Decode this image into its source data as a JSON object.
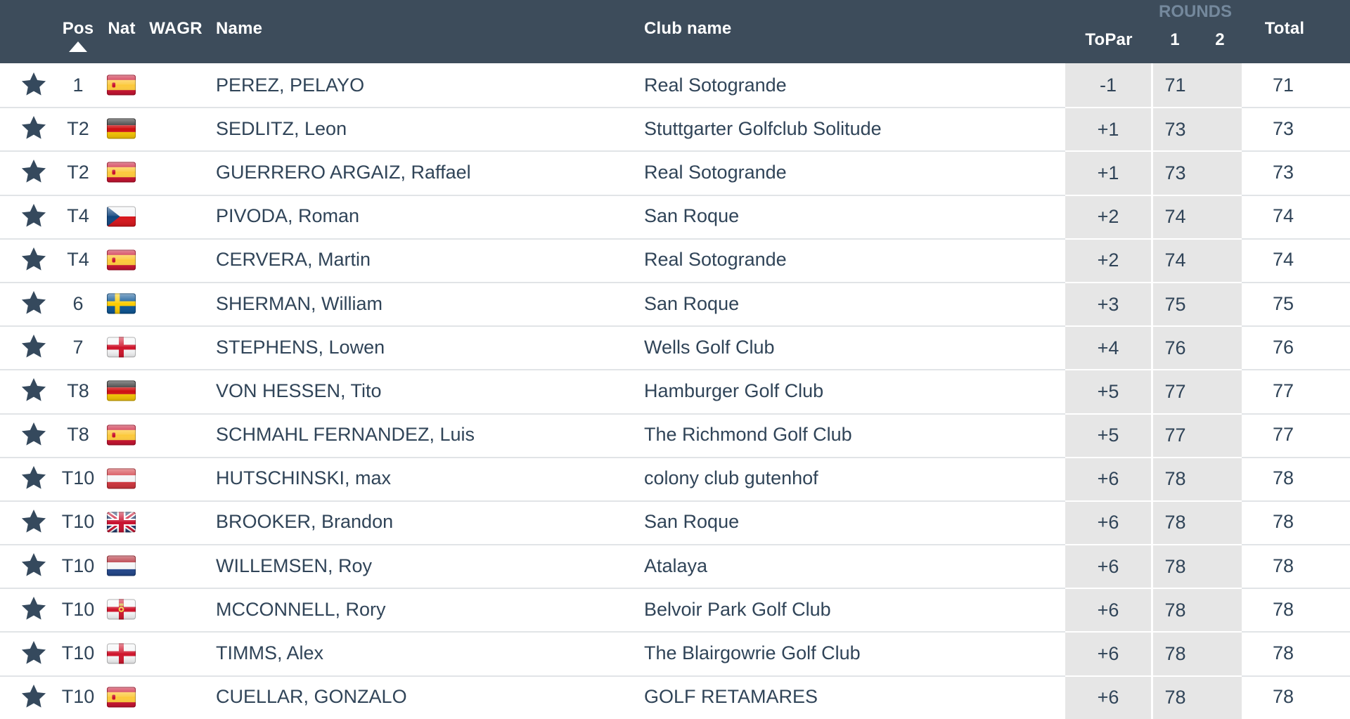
{
  "header": {
    "pos": "Pos",
    "nat": "Nat",
    "wagr": "WAGR",
    "name": "Name",
    "club": "Club name",
    "topar": "ToPar",
    "rounds_group": "ROUNDS",
    "round1": "1",
    "round2": "2",
    "total": "Total",
    "sort_icon": "up-triangle",
    "sorted_by": "Pos ascending"
  },
  "colors": {
    "header_bg": "#3d4c5b",
    "header_text": "#ffffff",
    "rounds_group_text": "#74889c",
    "row_text": "#304458",
    "score_cell_bg": "#e6e6e6",
    "row_divider": "#e1e4e7",
    "star": "#35495d"
  },
  "rows": [
    {
      "pos": "1",
      "nat": "ESP",
      "wagr": "",
      "name": "PEREZ, PELAYO",
      "club": "Real Sotogrande",
      "to_par": "-1",
      "r1": "71",
      "r2": "",
      "total": "71",
      "starred": true
    },
    {
      "pos": "T2",
      "nat": "GER",
      "wagr": "",
      "name": "SEDLITZ, Leon",
      "club": "Stuttgarter Golfclub Solitude",
      "to_par": "+1",
      "r1": "73",
      "r2": "",
      "total": "73",
      "starred": true
    },
    {
      "pos": "T2",
      "nat": "ESP",
      "wagr": "",
      "name": "GUERRERO ARGAIZ, Raffael",
      "club": "Real Sotogrande",
      "to_par": "+1",
      "r1": "73",
      "r2": "",
      "total": "73",
      "starred": true
    },
    {
      "pos": "T4",
      "nat": "CZE",
      "wagr": "",
      "name": "PIVODA, Roman",
      "club": "San Roque",
      "to_par": "+2",
      "r1": "74",
      "r2": "",
      "total": "74",
      "starred": true
    },
    {
      "pos": "T4",
      "nat": "ESP",
      "wagr": "",
      "name": "CERVERA, Martin",
      "club": "Real Sotogrande",
      "to_par": "+2",
      "r1": "74",
      "r2": "",
      "total": "74",
      "starred": true
    },
    {
      "pos": "6",
      "nat": "SWE",
      "wagr": "",
      "name": "SHERMAN, William",
      "club": "San Roque",
      "to_par": "+3",
      "r1": "75",
      "r2": "",
      "total": "75",
      "starred": true
    },
    {
      "pos": "7",
      "nat": "ENG",
      "wagr": "",
      "name": "STEPHENS, Lowen",
      "club": "Wells Golf Club",
      "to_par": "+4",
      "r1": "76",
      "r2": "",
      "total": "76",
      "starred": true
    },
    {
      "pos": "T8",
      "nat": "GER",
      "wagr": "",
      "name": "VON HESSEN, Tito",
      "club": "Hamburger Golf Club",
      "to_par": "+5",
      "r1": "77",
      "r2": "",
      "total": "77",
      "starred": true
    },
    {
      "pos": "T8",
      "nat": "ESP",
      "wagr": "",
      "name": "SCHMAHL FERNANDEZ, Luis",
      "club": "The Richmond Golf Club",
      "to_par": "+5",
      "r1": "77",
      "r2": "",
      "total": "77",
      "starred": true
    },
    {
      "pos": "T10",
      "nat": "AUT",
      "wagr": "",
      "name": "HUTSCHINSKI, max",
      "club": "colony club gutenhof",
      "to_par": "+6",
      "r1": "78",
      "r2": "",
      "total": "78",
      "starred": true
    },
    {
      "pos": "T10",
      "nat": "GBR",
      "wagr": "",
      "name": "BROOKER, Brandon",
      "club": "San Roque",
      "to_par": "+6",
      "r1": "78",
      "r2": "",
      "total": "78",
      "starred": true
    },
    {
      "pos": "T10",
      "nat": "NED",
      "wagr": "",
      "name": "WILLEMSEN, Roy",
      "club": "Atalaya",
      "to_par": "+6",
      "r1": "78",
      "r2": "",
      "total": "78",
      "starred": true
    },
    {
      "pos": "T10",
      "nat": "NIR",
      "wagr": "",
      "name": "MCCONNELL, Rory",
      "club": "Belvoir Park Golf Club",
      "to_par": "+6",
      "r1": "78",
      "r2": "",
      "total": "78",
      "starred": true
    },
    {
      "pos": "T10",
      "nat": "ENG",
      "wagr": "",
      "name": "TIMMS, Alex",
      "club": "The Blairgowrie Golf Club",
      "to_par": "+6",
      "r1": "78",
      "r2": "",
      "total": "78",
      "starred": true
    },
    {
      "pos": "T10",
      "nat": "ESP",
      "wagr": "",
      "name": "CUELLAR, GONZALO",
      "club": "GOLF RETAMARES",
      "to_par": "+6",
      "r1": "78",
      "r2": "",
      "total": "78",
      "starred": true
    }
  ]
}
